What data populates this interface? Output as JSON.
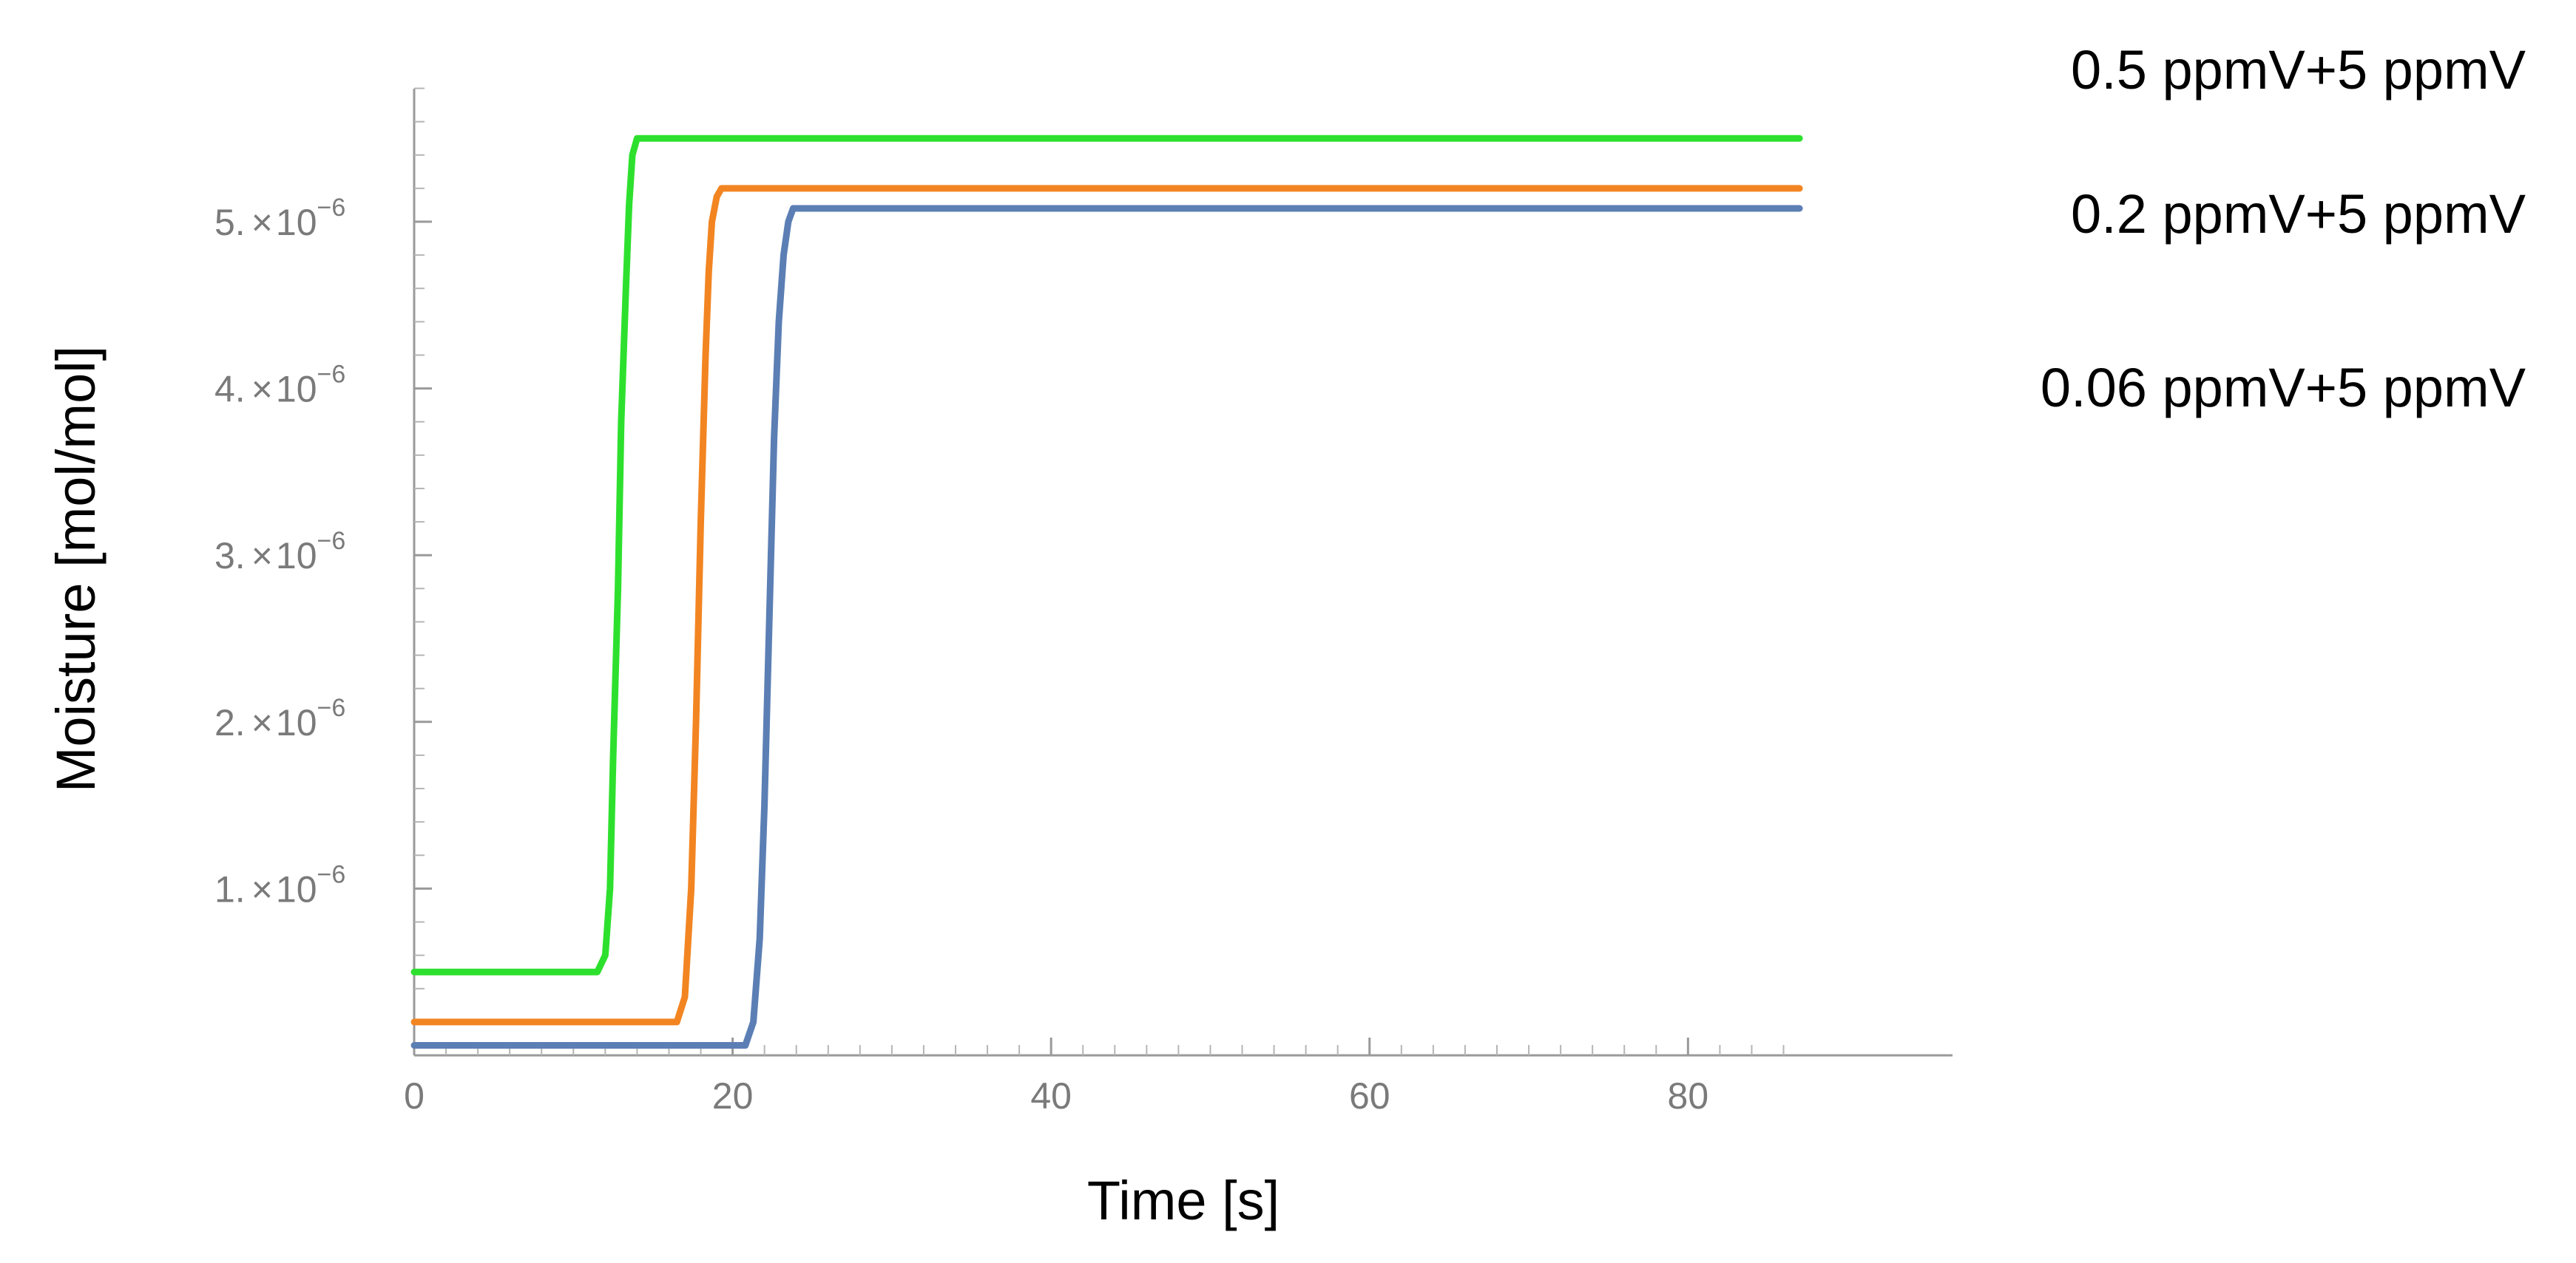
{
  "chart_data": {
    "type": "line",
    "title": "",
    "xlabel": "Time [s]",
    "ylabel": "Moisture [mol/mol]",
    "xlim": [
      0,
      87
    ],
    "ylim": [
      0,
      5.8e-06
    ],
    "grid": false,
    "x_ticks": [
      {
        "value": 0,
        "label": "0"
      },
      {
        "value": 20,
        "label": "20"
      },
      {
        "value": 40,
        "label": "40"
      },
      {
        "value": 60,
        "label": "60"
      },
      {
        "value": 80,
        "label": "80"
      }
    ],
    "y_ticks": [
      {
        "value": 1e-06,
        "mantissa": "1.",
        "times": "×",
        "base": "10",
        "exponent": "−6"
      },
      {
        "value": 2e-06,
        "mantissa": "2.",
        "times": "×",
        "base": "10",
        "exponent": "−6"
      },
      {
        "value": 3e-06,
        "mantissa": "3.",
        "times": "×",
        "base": "10",
        "exponent": "−6"
      },
      {
        "value": 4e-06,
        "mantissa": "4.",
        "times": "×",
        "base": "10",
        "exponent": "−6"
      },
      {
        "value": 5e-06,
        "mantissa": "5.",
        "times": "×",
        "base": "10",
        "exponent": "−6"
      }
    ],
    "series": [
      {
        "name": "0.5 ppmV+5 ppmV",
        "color": "#2ee02e",
        "x": [
          0,
          11.5,
          12.0,
          12.3,
          12.5,
          12.8,
          13.0,
          13.3,
          13.5,
          13.7,
          14.0,
          87
        ],
        "y": [
          5e-07,
          5e-07,
          6e-07,
          1e-06,
          1.8e-06,
          2.8e-06,
          3.8e-06,
          4.6e-06,
          5.1e-06,
          5.4e-06,
          5.5e-06,
          5.5e-06
        ]
      },
      {
        "name": "0.2 ppmV+5 ppmV",
        "color": "#f28522",
        "x": [
          0,
          16.5,
          17.0,
          17.4,
          17.7,
          18.0,
          18.3,
          18.5,
          18.7,
          19.0,
          19.3,
          87
        ],
        "y": [
          2e-07,
          2e-07,
          3.5e-07,
          1e-06,
          2e-06,
          3.2e-06,
          4.2e-06,
          4.7e-06,
          5e-06,
          5.15e-06,
          5.2e-06,
          5.2e-06
        ]
      },
      {
        "name": "0.06 ppmV+5 ppmV",
        "color": "#5b7fb4",
        "x": [
          0,
          20.8,
          21.3,
          21.7,
          22.0,
          22.3,
          22.6,
          22.9,
          23.2,
          23.5,
          23.8,
          87
        ],
        "y": [
          6e-08,
          6e-08,
          2e-07,
          7e-07,
          1.5e-06,
          2.6e-06,
          3.7e-06,
          4.4e-06,
          4.8e-06,
          5e-06,
          5.08e-06,
          5.08e-06
        ]
      }
    ]
  }
}
